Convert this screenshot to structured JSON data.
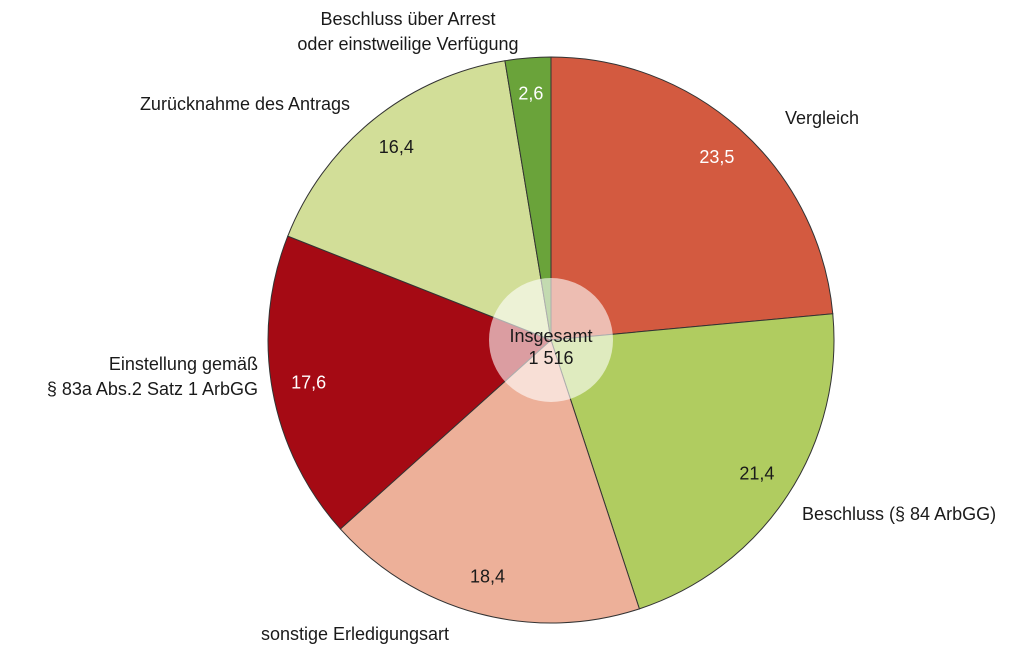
{
  "chart_data": {
    "type": "pie",
    "categories": [
      [
        "Vergleich"
      ],
      [
        "Beschluss (§ 84 ArbGG)"
      ],
      [
        "sonstige Erledigungsart"
      ],
      [
        "Einstellung gemäß",
        "§ 83a Abs.2 Satz 1 ArbGG"
      ],
      [
        "Zurücknahme des Antrags"
      ],
      [
        "Beschluss über Arrest",
        "oder einstweilige Verfügung"
      ]
    ],
    "values": [
      23.5,
      21.4,
      18.4,
      17.6,
      16.4,
      2.6
    ],
    "value_labels": [
      "23,5",
      "21,4",
      "18,4",
      "17,6",
      "16,4",
      "2,6"
    ],
    "colors": [
      "#d35a40",
      "#b0cc60",
      "#edb099",
      "#a50a14",
      "#d2de98",
      "#6aa33a"
    ],
    "center_label": "Insgesamt",
    "total": {
      "value": 1516,
      "label": "1 516"
    }
  }
}
